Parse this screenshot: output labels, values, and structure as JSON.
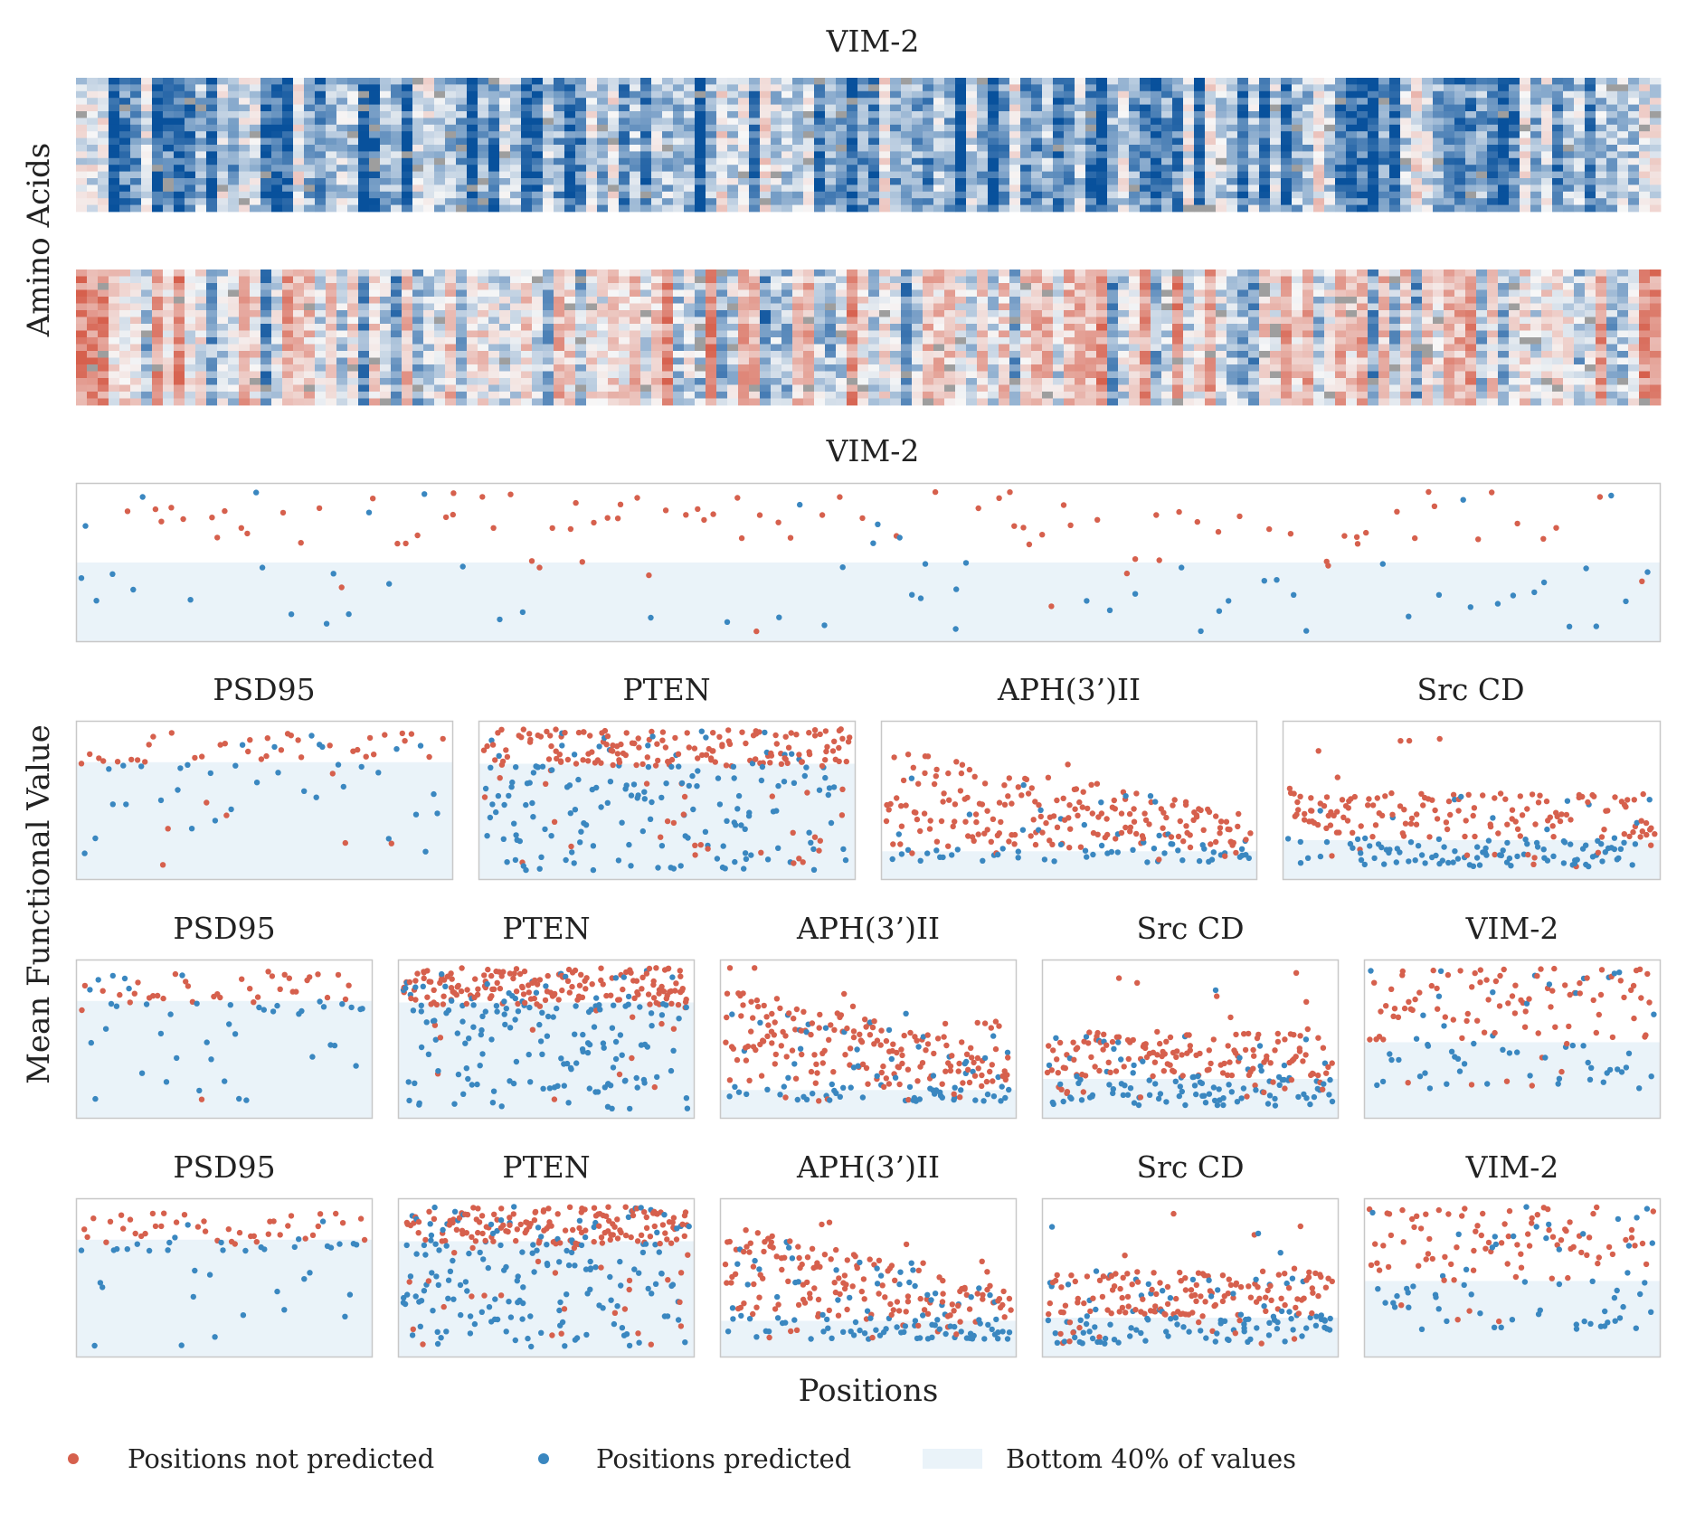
{
  "colors": {
    "not_predicted": "#d6604d",
    "predicted": "#3a87c0",
    "bottom_band": "#eaf3f9",
    "frame": "#c8c8c8",
    "heat_neg": "#d6604d",
    "heat_pos": "#08519c",
    "heat_missing": "#9e9e9e"
  },
  "heatmap_section": {
    "title": "VIM-2",
    "ylabel": "Amino Acids",
    "panels": [
      "predicted-effect-heatmap",
      "measured-effect-heatmap"
    ],
    "positions": 146,
    "amino_acids": 20
  },
  "scatter_section": {
    "ylabel": "Mean Functional Value",
    "xlabel": "Positions"
  },
  "legend": {
    "not_predicted": "Positions not predicted",
    "predicted": "Positions predicted",
    "band": "Bottom 40% of values"
  },
  "chart_data": [
    {
      "type": "heatmap",
      "name": "VIM-2 heatmap",
      "title": "VIM-2",
      "ylabel": "Amino Acids",
      "rows": 20,
      "cols": 146,
      "colormap": "RdBu"
    },
    {
      "type": "scatter",
      "title": "VIM-2",
      "row": 0,
      "points": 150,
      "band_fraction": 0.5,
      "pattern": "wide"
    },
    {
      "type": "scatter",
      "title": "PSD95",
      "row": 1,
      "points": 80,
      "band_fraction": 0.74,
      "pattern": "psd"
    },
    {
      "type": "scatter",
      "title": "PTEN",
      "row": 1,
      "points": 340,
      "band_fraction": 0.73,
      "pattern": "pten"
    },
    {
      "type": "scatter",
      "title": "APH(3’)II",
      "row": 1,
      "points": 260,
      "band_fraction": 0.18,
      "pattern": "aph"
    },
    {
      "type": "scatter",
      "title": "Src CD",
      "row": 1,
      "points": 260,
      "band_fraction": 0.25,
      "pattern": "src"
    },
    {
      "type": "scatter",
      "title": "PSD95",
      "row": 2,
      "points": 80,
      "band_fraction": 0.74,
      "pattern": "psd"
    },
    {
      "type": "scatter",
      "title": "PTEN",
      "row": 2,
      "points": 340,
      "band_fraction": 0.73,
      "pattern": "pten"
    },
    {
      "type": "scatter",
      "title": "APH(3’)II",
      "row": 2,
      "points": 260,
      "band_fraction": 0.18,
      "pattern": "aph"
    },
    {
      "type": "scatter",
      "title": "Src CD",
      "row": 2,
      "points": 260,
      "band_fraction": 0.25,
      "pattern": "src"
    },
    {
      "type": "scatter",
      "title": "VIM-2",
      "row": 2,
      "points": 150,
      "band_fraction": 0.48,
      "pattern": "vim"
    },
    {
      "type": "scatter",
      "title": "PSD95",
      "row": 3,
      "points": 80,
      "band_fraction": 0.74,
      "pattern": "psd"
    },
    {
      "type": "scatter",
      "title": "PTEN",
      "row": 3,
      "points": 340,
      "band_fraction": 0.73,
      "pattern": "pten"
    },
    {
      "type": "scatter",
      "title": "APH(3’)II",
      "row": 3,
      "points": 260,
      "band_fraction": 0.23,
      "pattern": "aph"
    },
    {
      "type": "scatter",
      "title": "Src CD",
      "row": 3,
      "points": 260,
      "band_fraction": 0.25,
      "pattern": "src"
    },
    {
      "type": "scatter",
      "title": "VIM-2",
      "row": 3,
      "points": 150,
      "band_fraction": 0.48,
      "pattern": "vim"
    }
  ]
}
